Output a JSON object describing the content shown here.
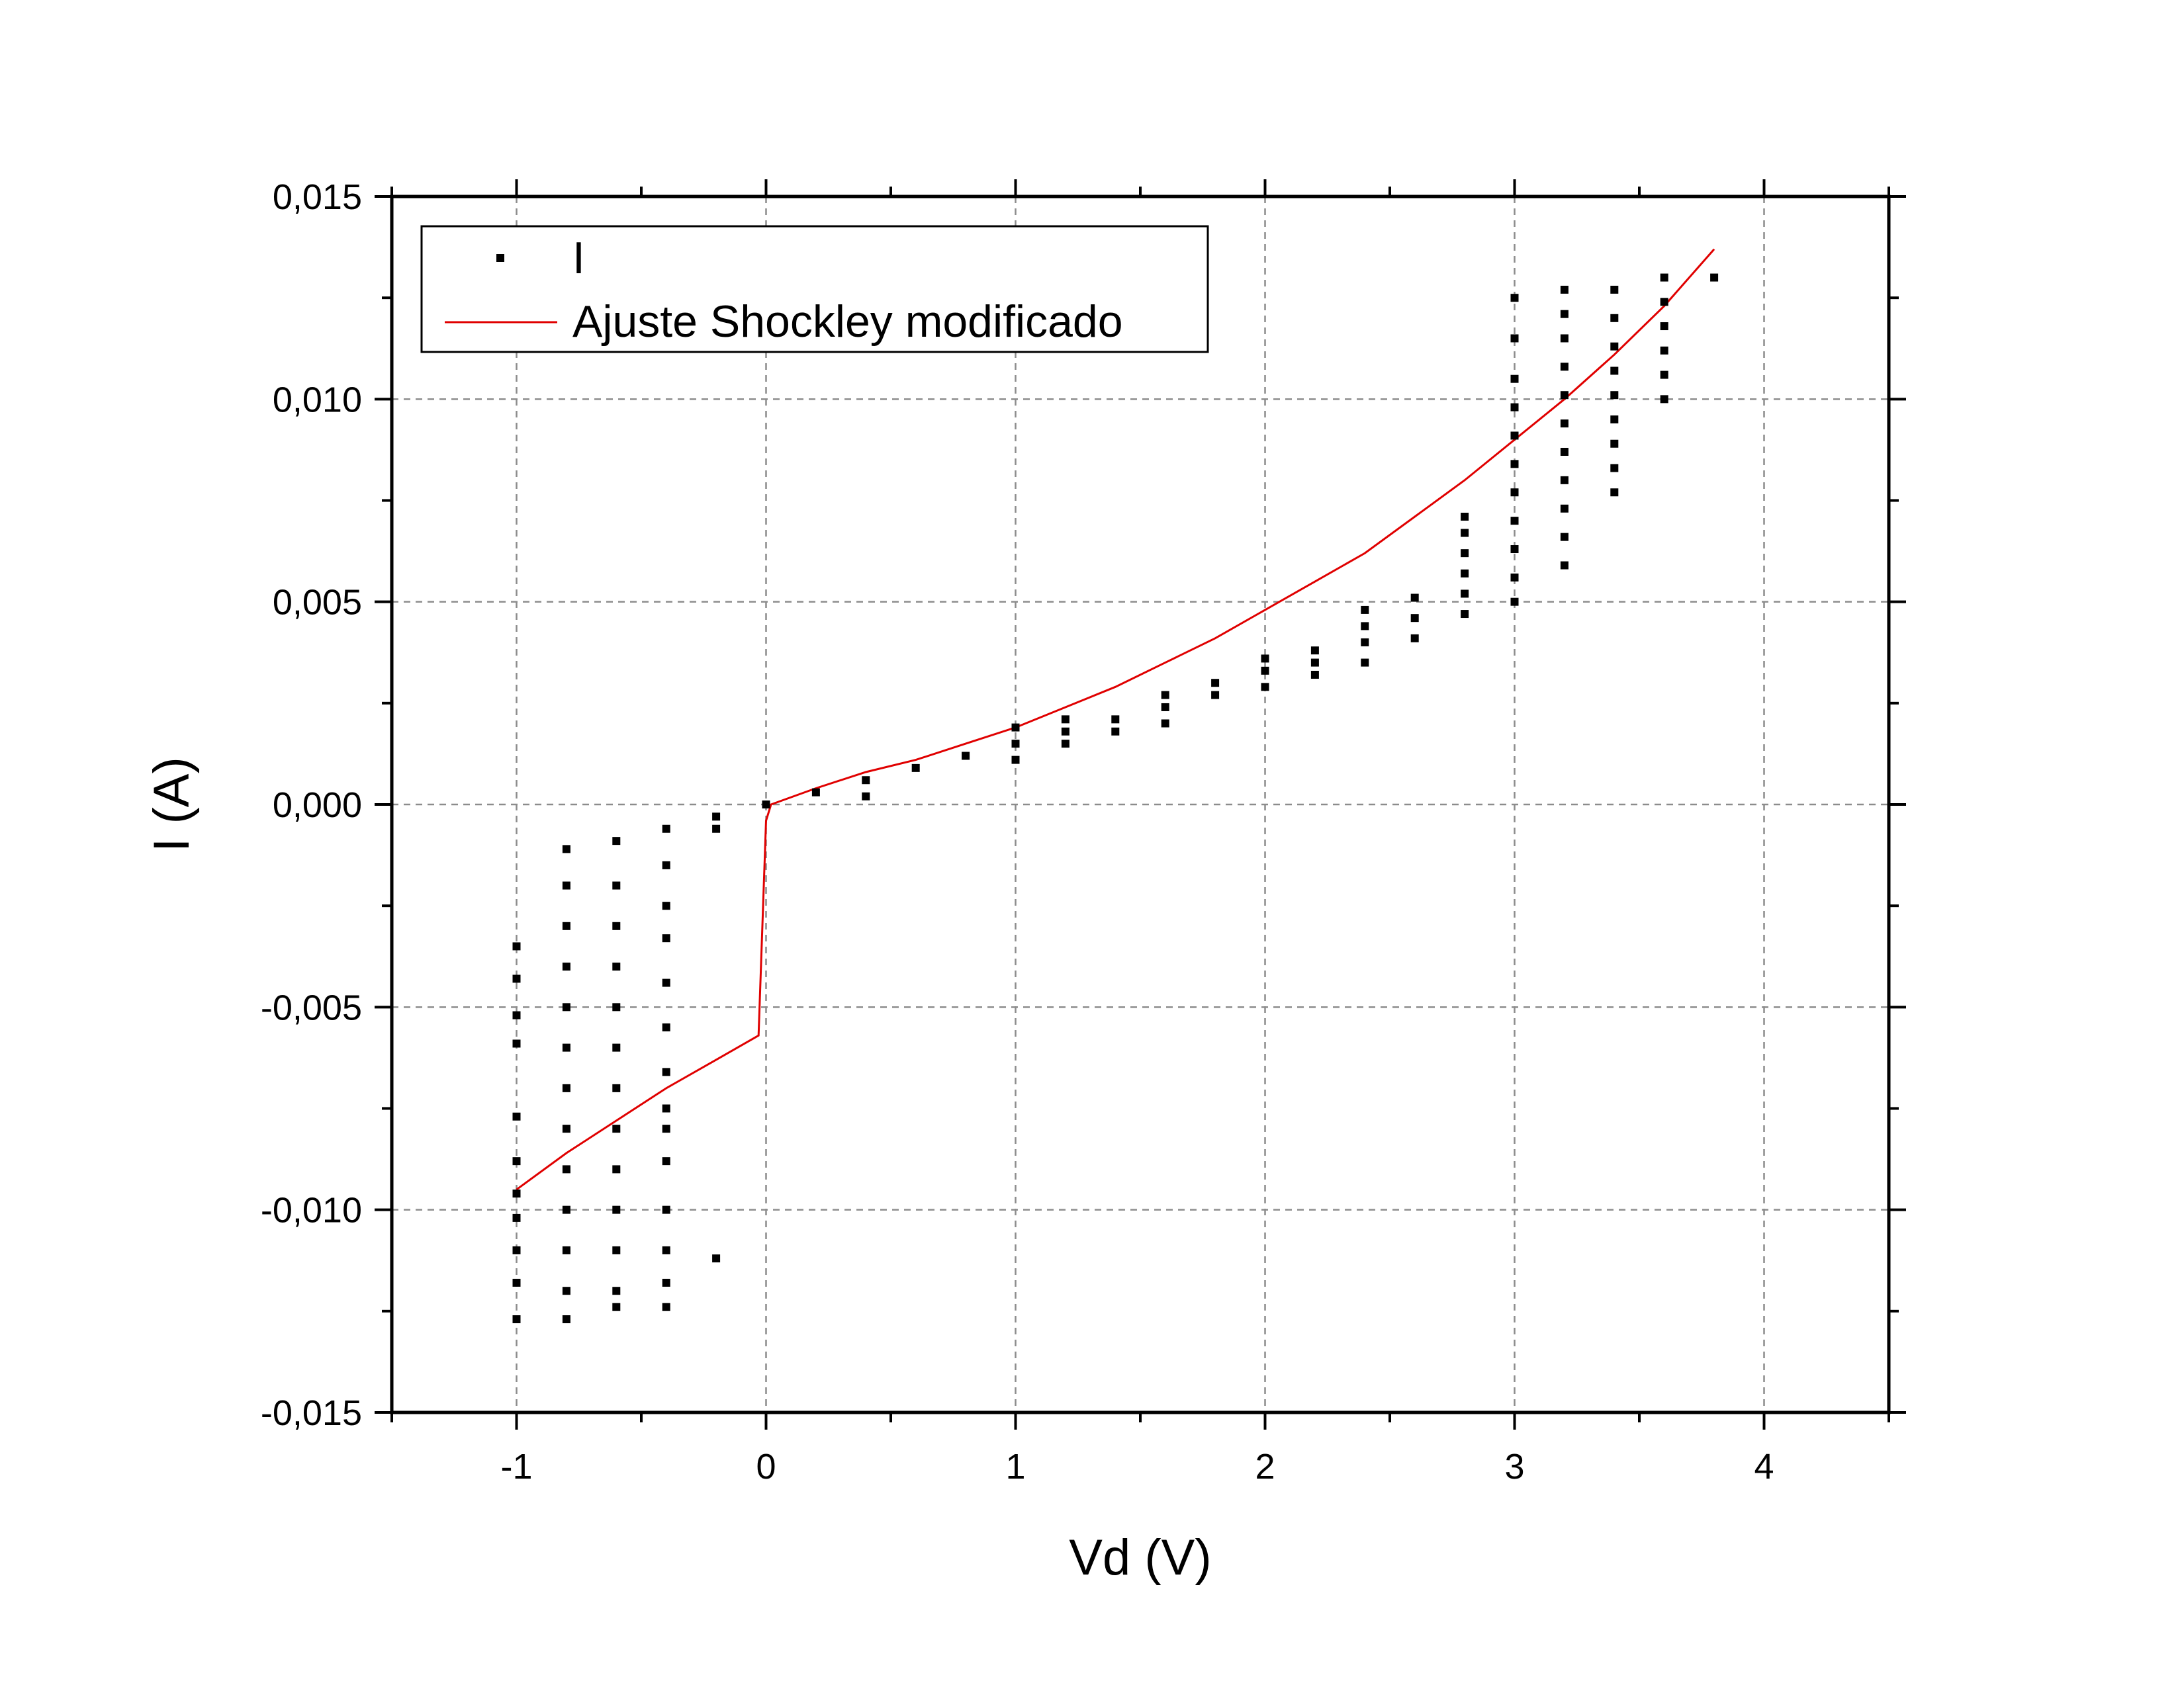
{
  "chart_data": {
    "type": "scatter",
    "xlabel": "Vd (V)",
    "ylabel": "I (A)",
    "xlim": [
      -1.5,
      4.5
    ],
    "ylim": [
      -0.015,
      0.015
    ],
    "x_ticks": [
      -1,
      0,
      1,
      2,
      3,
      4
    ],
    "x_tick_labels": [
      "-1",
      "0",
      "1",
      "2",
      "3",
      "4"
    ],
    "y_ticks": [
      -0.015,
      -0.01,
      -0.005,
      0.0,
      0.005,
      0.01,
      0.015
    ],
    "y_tick_labels": [
      "-0,015",
      "-0,010",
      "-0,005",
      "0,000",
      "0,005",
      "0,010",
      "0,015"
    ],
    "grid": true,
    "legend_position": "top-left",
    "series": [
      {
        "name": "I",
        "kind": "scatter",
        "color": "#000000",
        "columns": [
          {
            "x": -1.0,
            "y": [
              -0.0035,
              -0.0043,
              -0.0052,
              -0.0059,
              -0.0077,
              -0.0088,
              -0.0096,
              -0.0102,
              -0.011,
              -0.0118,
              -0.0127
            ]
          },
          {
            "x": -0.8,
            "y": [
              -0.0011,
              -0.002,
              -0.003,
              -0.004,
              -0.005,
              -0.006,
              -0.007,
              -0.008,
              -0.009,
              -0.01,
              -0.011,
              -0.012,
              -0.0127
            ]
          },
          {
            "x": -0.6,
            "y": [
              -0.0009,
              -0.002,
              -0.003,
              -0.004,
              -0.005,
              -0.006,
              -0.007,
              -0.008,
              -0.009,
              -0.01,
              -0.011,
              -0.012,
              -0.0124
            ]
          },
          {
            "x": -0.4,
            "y": [
              -0.0006,
              -0.0015,
              -0.0025,
              -0.0033,
              -0.0044,
              -0.0055,
              -0.0066,
              -0.0075,
              -0.008,
              -0.0088,
              -0.01,
              -0.011,
              -0.0118,
              -0.0124
            ]
          },
          {
            "x": -0.2,
            "y": [
              -0.0003,
              -0.0006,
              -0.0112
            ]
          },
          {
            "x": 0.0,
            "y": [
              0.0
            ]
          },
          {
            "x": 0.2,
            "y": [
              0.0003
            ]
          },
          {
            "x": 0.4,
            "y": [
              0.0002,
              0.0006
            ]
          },
          {
            "x": 0.6,
            "y": [
              0.0009
            ]
          },
          {
            "x": 0.8,
            "y": [
              0.0012
            ]
          },
          {
            "x": 1.0,
            "y": [
              0.0011,
              0.0015,
              0.0019
            ]
          },
          {
            "x": 1.2,
            "y": [
              0.0015,
              0.0018,
              0.0021
            ]
          },
          {
            "x": 1.4,
            "y": [
              0.0018,
              0.0021
            ]
          },
          {
            "x": 1.6,
            "y": [
              0.002,
              0.0024,
              0.0027
            ]
          },
          {
            "x": 1.8,
            "y": [
              0.0027,
              0.003
            ]
          },
          {
            "x": 2.0,
            "y": [
              0.0029,
              0.0033,
              0.0036
            ]
          },
          {
            "x": 2.2,
            "y": [
              0.0032,
              0.0035,
              0.0038
            ]
          },
          {
            "x": 2.4,
            "y": [
              0.0035,
              0.004,
              0.0044,
              0.0048
            ]
          },
          {
            "x": 2.6,
            "y": [
              0.0041,
              0.0046,
              0.0051
            ]
          },
          {
            "x": 2.8,
            "y": [
              0.0047,
              0.0052,
              0.0057,
              0.0062,
              0.0067,
              0.0071
            ]
          },
          {
            "x": 3.0,
            "y": [
              0.005,
              0.0056,
              0.0063,
              0.007,
              0.0077,
              0.0084,
              0.0091,
              0.0098,
              0.0105,
              0.0115,
              0.0125
            ]
          },
          {
            "x": 3.2,
            "y": [
              0.0059,
              0.0066,
              0.0073,
              0.008,
              0.0087,
              0.0094,
              0.0101,
              0.0108,
              0.0115,
              0.0121,
              0.0127
            ]
          },
          {
            "x": 3.4,
            "y": [
              0.0077,
              0.0083,
              0.0089,
              0.0095,
              0.0101,
              0.0107,
              0.0113,
              0.012,
              0.0127
            ]
          },
          {
            "x": 3.6,
            "y": [
              0.01,
              0.0106,
              0.0112,
              0.0118,
              0.0124,
              0.013
            ]
          },
          {
            "x": 3.8,
            "y": [
              0.013
            ]
          }
        ]
      },
      {
        "name": "Ajuste Shockley modificado",
        "kind": "line",
        "color": "#e00000",
        "x": [
          -1.0,
          -0.8,
          -0.6,
          -0.4,
          -0.2,
          -0.03,
          0.0,
          0.02,
          0.2,
          0.4,
          0.6,
          0.8,
          1.0,
          1.2,
          1.4,
          1.6,
          1.8,
          2.0,
          2.2,
          2.4,
          2.6,
          2.8,
          3.0,
          3.2,
          3.4,
          3.6,
          3.8
        ],
        "y": [
          -0.0095,
          -0.0086,
          -0.0078,
          -0.007,
          -0.0063,
          -0.0057,
          -0.0004,
          0.0,
          0.0004,
          0.0008,
          0.0011,
          0.0015,
          0.0019,
          0.0024,
          0.0029,
          0.0035,
          0.0041,
          0.0048,
          0.0055,
          0.0062,
          0.0071,
          0.008,
          0.009,
          0.01,
          0.0111,
          0.0123,
          0.0137
        ]
      }
    ]
  }
}
